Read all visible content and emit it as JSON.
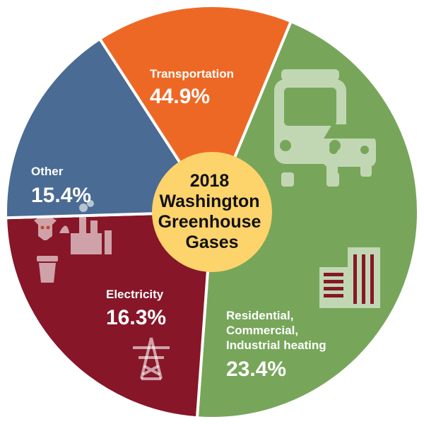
{
  "chart_data": {
    "type": "pie",
    "title": "2018 Washington Greenhouse Gases",
    "title_lines": [
      "2018",
      "Washington",
      "Greenhouse",
      "Gases"
    ],
    "slices": [
      {
        "key": "transportation",
        "label_lines": [
          "Transportation"
        ],
        "value": 44.9,
        "value_label": "44.9%",
        "color": "#77a65a",
        "icon": "bus-and-car-icon"
      },
      {
        "key": "residential",
        "label_lines": [
          "Residential,",
          "Commercial,",
          "Industrial heating"
        ],
        "value": 23.4,
        "value_label": "23.4%",
        "color": "#871628",
        "icon": "building-icon"
      },
      {
        "key": "electricity",
        "label_lines": [
          "Electricity"
        ],
        "value": 16.3,
        "value_label": "16.3%",
        "color": "#4a6b93",
        "icon": "power-tower-icon"
      },
      {
        "key": "other",
        "label_lines": [
          "Other"
        ],
        "value": 15.4,
        "value_label": "15.4%",
        "color": "#ee6825",
        "icon": "cow-factory-trash-icon"
      }
    ],
    "center_color": "#fdd36c",
    "icon_color": "#ffffff"
  }
}
